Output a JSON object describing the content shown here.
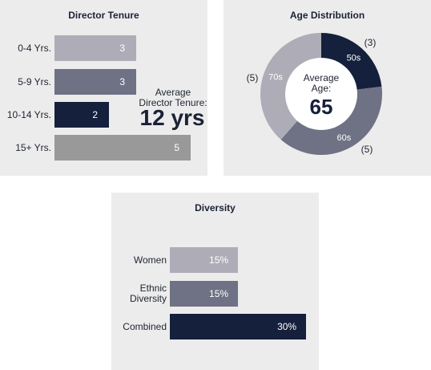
{
  "colors": {
    "navy": "#15203c",
    "slate": "#6f7184",
    "grey_light": "#aeadb7",
    "grey_mid": "#999999",
    "panel_bg": "#ececec"
  },
  "chart_data": [
    {
      "type": "bar",
      "orientation": "horizontal",
      "title": "Director Tenure",
      "categories": [
        "0-4 Yrs.",
        "5-9 Yrs.",
        "10-14 Yrs.",
        "15+ Yrs."
      ],
      "values": [
        3,
        3,
        2,
        5
      ],
      "bar_colors": [
        "#aeadb7",
        "#6f7184",
        "#15203c",
        "#999999"
      ],
      "annotation": {
        "label_line1": "Average",
        "label_line2": "Director Tenure:",
        "value": "12 yrs"
      }
    },
    {
      "type": "pie",
      "donut": true,
      "title": "Age Distribution",
      "categories": [
        "50s",
        "60s",
        "70s"
      ],
      "values": [
        3,
        5,
        5
      ],
      "value_labels": [
        "(3)",
        "(5)",
        "(5)"
      ],
      "slice_colors": [
        "#15203c",
        "#6f7184",
        "#aeadb7"
      ],
      "center": {
        "label_line1": "Average",
        "label_line2": "Age:",
        "value": "65"
      }
    },
    {
      "type": "bar",
      "orientation": "horizontal",
      "title": "Diversity",
      "categories": [
        "Women",
        "Ethnic Diversity",
        "Combined"
      ],
      "category_lines": [
        [
          "Women"
        ],
        [
          "Ethnic",
          "Diversity"
        ],
        [
          "Combined"
        ]
      ],
      "values": [
        15,
        15,
        30
      ],
      "value_labels": [
        "15%",
        "15%",
        "30%"
      ],
      "bar_colors": [
        "#aeadb7",
        "#6f7184",
        "#15203c"
      ]
    }
  ]
}
